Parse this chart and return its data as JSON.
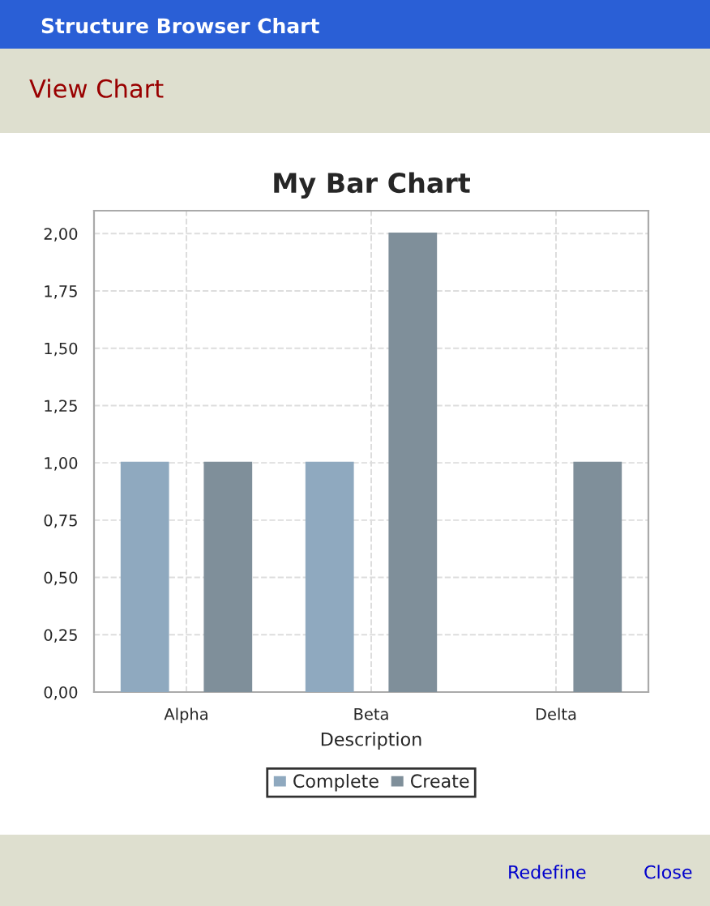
{
  "chart_data": {
    "type": "bar",
    "title": "My Bar Chart",
    "xlabel": "Description",
    "categories": [
      "Alpha",
      "Beta",
      "Delta"
    ],
    "series": [
      {
        "name": "Complete",
        "color": "#8fa9bf",
        "values": [
          1,
          1,
          null
        ]
      },
      {
        "name": "Create",
        "color": "#7f8f9a",
        "values": [
          1,
          2,
          1
        ]
      }
    ],
    "ylim": [
      0,
      2.1
    ],
    "yticks": [
      {
        "value": 0,
        "label": "0,00"
      },
      {
        "value": 0.25,
        "label": "0,25"
      },
      {
        "value": 0.5,
        "label": "0,50"
      },
      {
        "value": 0.75,
        "label": "0,75"
      },
      {
        "value": 1,
        "label": "1,00"
      },
      {
        "value": 1.25,
        "label": "1,25"
      },
      {
        "value": 1.5,
        "label": "1,50"
      },
      {
        "value": 1.75,
        "label": "1,75"
      },
      {
        "value": 2,
        "label": "2,00"
      }
    ],
    "grid": true,
    "legend": "bottom",
    "annotations": [
      "Structure Browser Chart",
      "View Chart",
      "Redefine",
      "Close"
    ]
  }
}
